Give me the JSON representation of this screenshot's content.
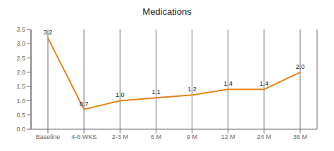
{
  "chart_data": {
    "type": "line",
    "title": "Medications",
    "categories": [
      "Baseline",
      "4-6 WKS",
      "2-3 M",
      "6 M",
      "9 M",
      "12 M",
      "24 M",
      "36 M"
    ],
    "values": [
      3.2,
      0.7,
      1.0,
      1.1,
      1.2,
      1.4,
      1.4,
      2.0
    ],
    "value_labels": [
      "3.2",
      "0.7",
      "1.0",
      "1.1",
      "1.2",
      "1.4",
      "1.4",
      "2.0"
    ],
    "color": "#E8821A",
    "marker": "none",
    "ylim": [
      0.0,
      3.5
    ],
    "yticks": [
      {
        "value": 0,
        "label": "0.0"
      },
      0.5,
      {
        "value": 1,
        "label": "1.0"
      },
      1.5,
      {
        "value": 2,
        "label": "2.0"
      },
      2.5,
      {
        "value": 3,
        "label": "3.0"
      },
      3.5
    ],
    "data_labels": true,
    "grid": "x"
  }
}
